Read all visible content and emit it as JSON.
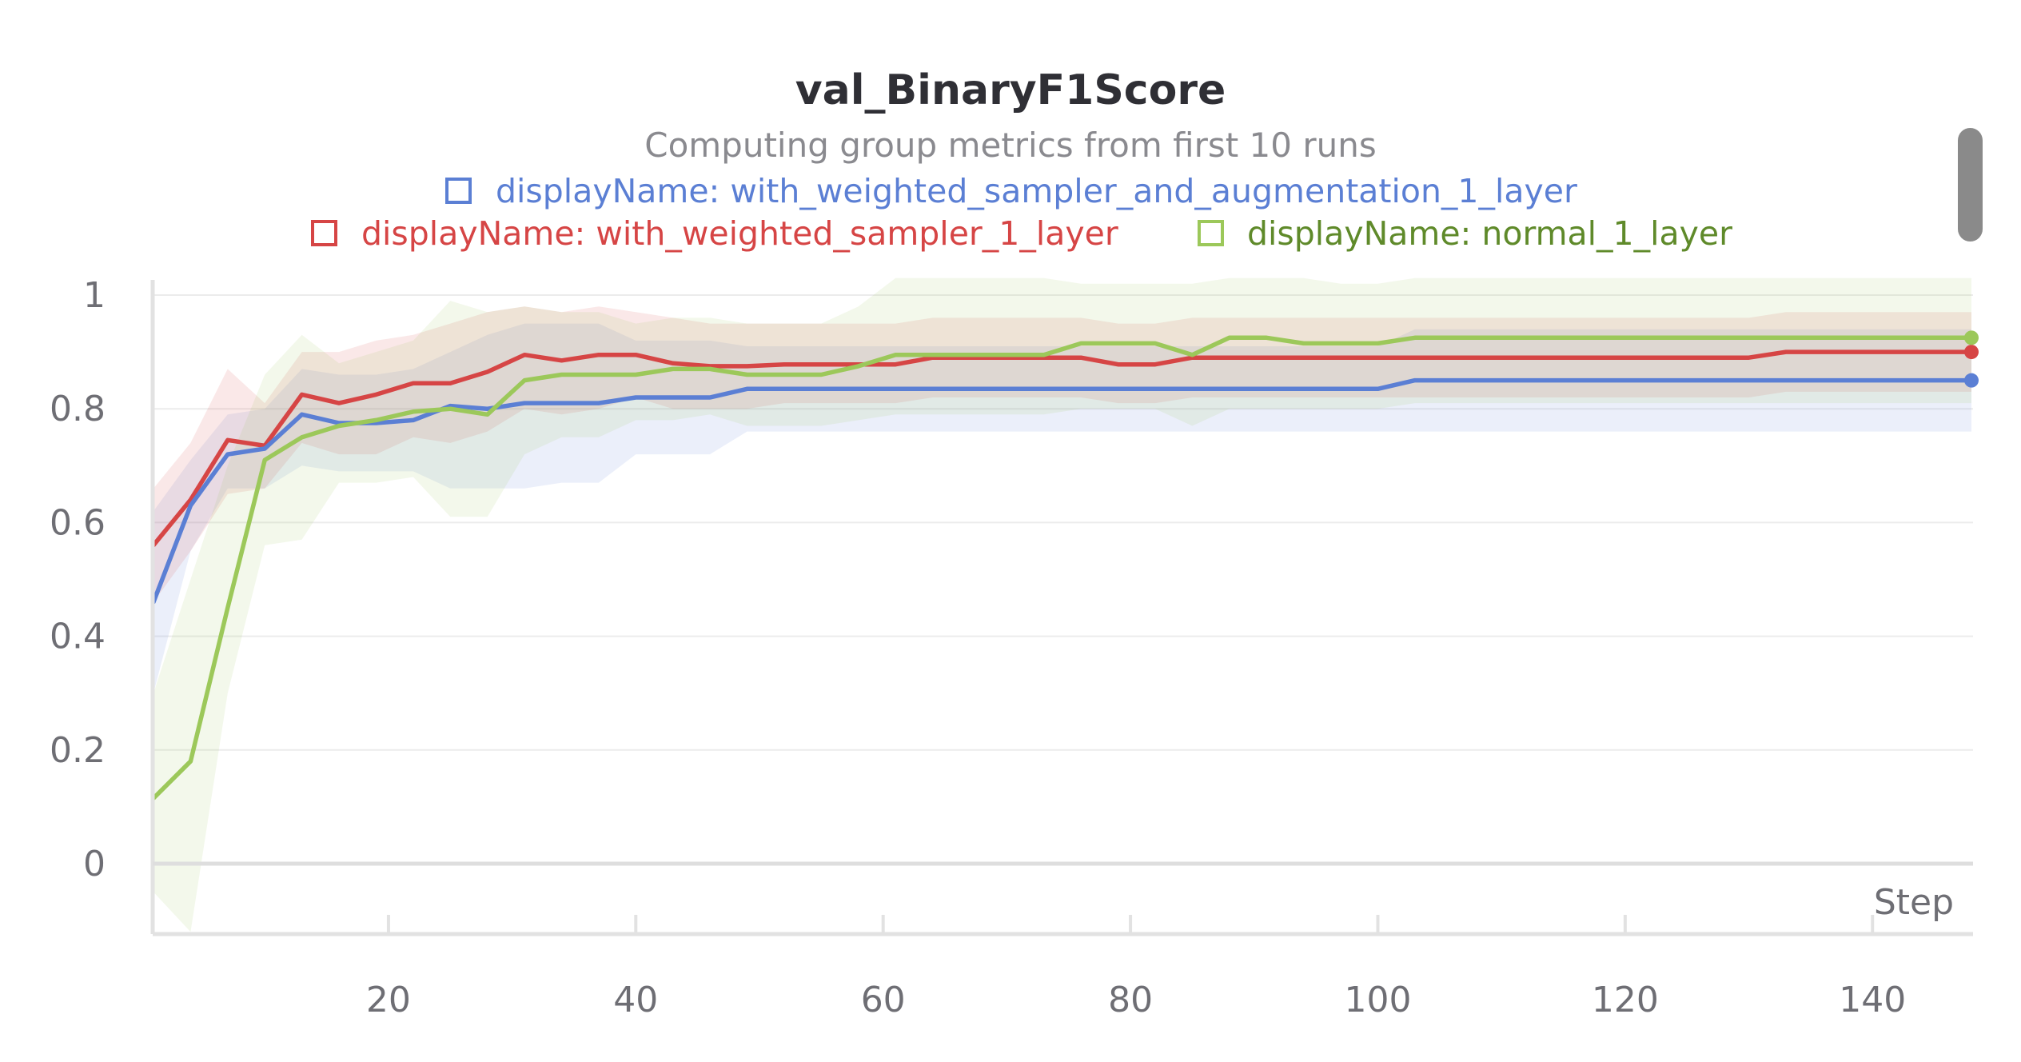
{
  "chart_data": {
    "type": "line",
    "title": "val_BinaryF1Score",
    "subtitle": "Computing group metrics from first 10 runs",
    "xlabel": "Step",
    "ylabel": "",
    "xlim": [
      1,
      148
    ],
    "ylim": [
      -0.12,
      1.03
    ],
    "x_ticks": [
      20,
      40,
      60,
      80,
      100,
      120,
      140
    ],
    "y_ticks": [
      0,
      0.2,
      0.4,
      0.6,
      0.8,
      1
    ],
    "y_tick_labels": [
      "0",
      "0.2",
      "0.4",
      "0.6",
      "0.8",
      "1"
    ],
    "grid": true,
    "legend_position": "top",
    "series": [
      {
        "name": "displayName: with_weighted_sampler_and_augmentation_1_layer",
        "color": "#5b7fd4",
        "x": [
          1,
          4,
          7,
          10,
          13,
          16,
          19,
          22,
          25,
          28,
          31,
          34,
          37,
          40,
          43,
          46,
          49,
          52,
          55,
          58,
          61,
          64,
          67,
          70,
          73,
          76,
          79,
          82,
          85,
          88,
          91,
          94,
          97,
          100,
          103,
          106,
          109,
          112,
          115,
          118,
          121,
          124,
          127,
          130,
          133,
          136,
          139,
          142,
          145,
          148
        ],
        "values": [
          0.46,
          0.63,
          0.72,
          0.73,
          0.79,
          0.775,
          0.775,
          0.78,
          0.805,
          0.8,
          0.81,
          0.81,
          0.81,
          0.82,
          0.82,
          0.82,
          0.835,
          0.835,
          0.835,
          0.835,
          0.835,
          0.835,
          0.835,
          0.835,
          0.835,
          0.835,
          0.835,
          0.835,
          0.835,
          0.835,
          0.835,
          0.835,
          0.835,
          0.835,
          0.85,
          0.85,
          0.85,
          0.85,
          0.85,
          0.85,
          0.85,
          0.85,
          0.85,
          0.85,
          0.85,
          0.85,
          0.85,
          0.85,
          0.85,
          0.85
        ],
        "band_low": [
          0.3,
          0.55,
          0.66,
          0.66,
          0.7,
          0.69,
          0.69,
          0.69,
          0.66,
          0.66,
          0.66,
          0.67,
          0.67,
          0.72,
          0.72,
          0.72,
          0.76,
          0.76,
          0.76,
          0.76,
          0.76,
          0.76,
          0.76,
          0.76,
          0.76,
          0.76,
          0.76,
          0.76,
          0.76,
          0.76,
          0.76,
          0.76,
          0.76,
          0.76,
          0.76,
          0.76,
          0.76,
          0.76,
          0.76,
          0.76,
          0.76,
          0.76,
          0.76,
          0.76,
          0.76,
          0.76,
          0.76,
          0.76,
          0.76,
          0.76
        ],
        "band_high": [
          0.62,
          0.71,
          0.79,
          0.8,
          0.87,
          0.86,
          0.86,
          0.87,
          0.9,
          0.93,
          0.95,
          0.95,
          0.95,
          0.92,
          0.92,
          0.92,
          0.91,
          0.91,
          0.91,
          0.91,
          0.91,
          0.91,
          0.91,
          0.91,
          0.91,
          0.91,
          0.91,
          0.91,
          0.91,
          0.91,
          0.91,
          0.91,
          0.91,
          0.91,
          0.94,
          0.94,
          0.94,
          0.94,
          0.94,
          0.94,
          0.94,
          0.94,
          0.94,
          0.94,
          0.94,
          0.94,
          0.94,
          0.94,
          0.94,
          0.94
        ],
        "band_color": "#5b7fd4"
      },
      {
        "name": "displayName: with_weighted_sampler_1_layer",
        "color": "#d64545",
        "x": [
          1,
          4,
          7,
          10,
          13,
          16,
          19,
          22,
          25,
          28,
          31,
          34,
          37,
          40,
          43,
          46,
          49,
          52,
          55,
          58,
          61,
          64,
          67,
          70,
          73,
          76,
          79,
          82,
          85,
          88,
          91,
          94,
          97,
          100,
          103,
          106,
          109,
          112,
          115,
          118,
          121,
          124,
          127,
          130,
          133,
          136,
          139,
          142,
          145,
          148
        ],
        "values": [
          0.56,
          0.64,
          0.745,
          0.735,
          0.825,
          0.81,
          0.825,
          0.845,
          0.845,
          0.865,
          0.895,
          0.885,
          0.895,
          0.895,
          0.88,
          0.875,
          0.875,
          0.878,
          0.878,
          0.878,
          0.878,
          0.89,
          0.89,
          0.89,
          0.89,
          0.89,
          0.878,
          0.878,
          0.89,
          0.89,
          0.89,
          0.89,
          0.89,
          0.89,
          0.89,
          0.89,
          0.89,
          0.89,
          0.89,
          0.89,
          0.89,
          0.89,
          0.89,
          0.89,
          0.9,
          0.9,
          0.9,
          0.9,
          0.9,
          0.9
        ],
        "band_low": [
          0.46,
          0.55,
          0.65,
          0.66,
          0.74,
          0.72,
          0.72,
          0.75,
          0.74,
          0.76,
          0.8,
          0.79,
          0.8,
          0.82,
          0.8,
          0.8,
          0.8,
          0.81,
          0.81,
          0.81,
          0.81,
          0.82,
          0.82,
          0.82,
          0.82,
          0.82,
          0.81,
          0.81,
          0.82,
          0.82,
          0.82,
          0.82,
          0.82,
          0.82,
          0.82,
          0.82,
          0.82,
          0.82,
          0.82,
          0.82,
          0.82,
          0.82,
          0.82,
          0.82,
          0.83,
          0.83,
          0.83,
          0.83,
          0.83,
          0.83
        ],
        "band_high": [
          0.66,
          0.74,
          0.87,
          0.81,
          0.9,
          0.9,
          0.92,
          0.93,
          0.95,
          0.97,
          0.98,
          0.97,
          0.98,
          0.97,
          0.96,
          0.95,
          0.95,
          0.95,
          0.95,
          0.95,
          0.95,
          0.96,
          0.96,
          0.96,
          0.96,
          0.96,
          0.95,
          0.95,
          0.96,
          0.96,
          0.96,
          0.96,
          0.96,
          0.96,
          0.96,
          0.96,
          0.96,
          0.96,
          0.96,
          0.96,
          0.96,
          0.96,
          0.96,
          0.96,
          0.97,
          0.97,
          0.97,
          0.97,
          0.97,
          0.97
        ],
        "band_color": "#d64545"
      },
      {
        "name": "displayName: normal_1_layer",
        "color": "#9cc85a",
        "x": [
          1,
          4,
          7,
          10,
          13,
          16,
          19,
          22,
          25,
          28,
          31,
          34,
          37,
          40,
          43,
          46,
          49,
          52,
          55,
          58,
          61,
          64,
          67,
          70,
          73,
          76,
          79,
          82,
          85,
          88,
          91,
          94,
          97,
          100,
          103,
          106,
          109,
          112,
          115,
          118,
          121,
          124,
          127,
          130,
          133,
          136,
          139,
          142,
          145,
          148
        ],
        "values": [
          0.115,
          0.18,
          0.45,
          0.71,
          0.75,
          0.77,
          0.78,
          0.795,
          0.8,
          0.79,
          0.85,
          0.86,
          0.86,
          0.86,
          0.87,
          0.87,
          0.86,
          0.86,
          0.86,
          0.875,
          0.895,
          0.895,
          0.895,
          0.895,
          0.895,
          0.915,
          0.915,
          0.915,
          0.895,
          0.925,
          0.925,
          0.915,
          0.915,
          0.915,
          0.925,
          0.925,
          0.925,
          0.925,
          0.925,
          0.925,
          0.925,
          0.925,
          0.925,
          0.925,
          0.925,
          0.925,
          0.925,
          0.925,
          0.925,
          0.925
        ],
        "band_low": [
          -0.05,
          -0.12,
          0.3,
          0.56,
          0.57,
          0.67,
          0.67,
          0.68,
          0.61,
          0.61,
          0.72,
          0.75,
          0.75,
          0.78,
          0.78,
          0.79,
          0.77,
          0.77,
          0.77,
          0.78,
          0.79,
          0.79,
          0.79,
          0.79,
          0.79,
          0.8,
          0.8,
          0.8,
          0.77,
          0.8,
          0.8,
          0.8,
          0.8,
          0.8,
          0.81,
          0.81,
          0.81,
          0.81,
          0.81,
          0.81,
          0.81,
          0.81,
          0.81,
          0.81,
          0.81,
          0.81,
          0.81,
          0.81,
          0.81,
          0.81
        ],
        "band_high": [
          0.3,
          0.5,
          0.7,
          0.86,
          0.93,
          0.88,
          0.9,
          0.92,
          0.99,
          0.97,
          0.98,
          0.97,
          0.97,
          0.95,
          0.96,
          0.96,
          0.95,
          0.95,
          0.95,
          0.98,
          1.03,
          1.03,
          1.03,
          1.03,
          1.03,
          1.02,
          1.02,
          1.02,
          1.02,
          1.03,
          1.03,
          1.03,
          1.02,
          1.02,
          1.03,
          1.03,
          1.03,
          1.03,
          1.03,
          1.03,
          1.03,
          1.03,
          1.03,
          1.03,
          1.03,
          1.03,
          1.03,
          1.03,
          1.03,
          1.03
        ],
        "band_color": "#9cc85a"
      }
    ]
  }
}
